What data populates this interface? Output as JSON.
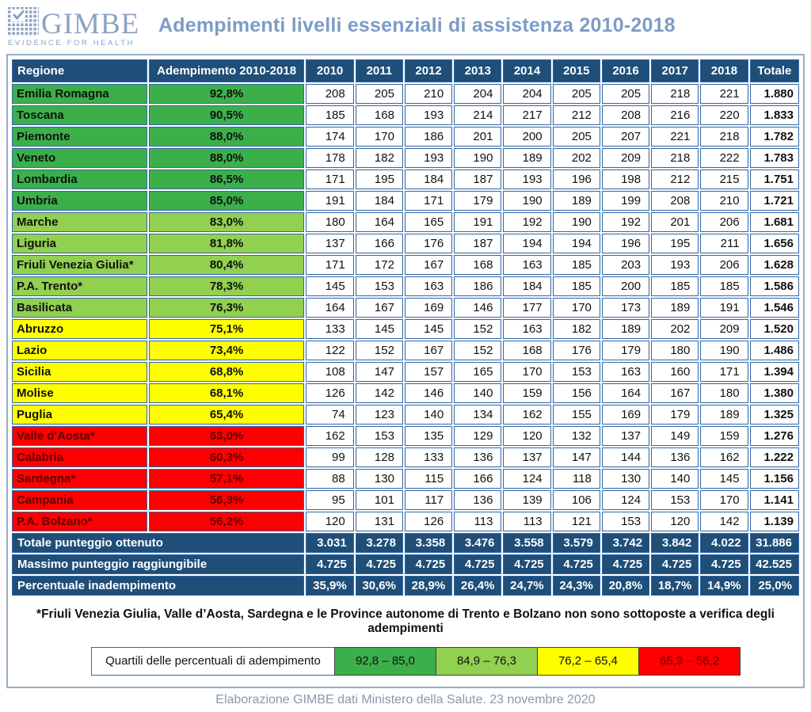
{
  "logo": {
    "brand": "GIMBE",
    "tagline": "EVIDENCE FOR HEALTH",
    "icon": "grid-check-icon",
    "color": "#8BA3C4"
  },
  "chart_data": {
    "type": "table",
    "title": "Adempimenti livelli essenziali di assistenza 2010-2018",
    "headers": [
      "Regione",
      "Adempimento 2010-2018",
      "2010",
      "2011",
      "2012",
      "2013",
      "2014",
      "2015",
      "2016",
      "2017",
      "2018",
      "Totale"
    ],
    "rows": [
      {
        "region": "Emilia Romagna",
        "adempimento": "92,8%",
        "tier": "green",
        "values": [
          208,
          205,
          210,
          204,
          204,
          205,
          205,
          218,
          221
        ],
        "total": "1.880"
      },
      {
        "region": "Toscana",
        "adempimento": "90,5%",
        "tier": "green",
        "values": [
          185,
          168,
          193,
          214,
          217,
          212,
          208,
          216,
          220
        ],
        "total": "1.833"
      },
      {
        "region": "Piemonte",
        "adempimento": "88,0%",
        "tier": "green",
        "values": [
          174,
          170,
          186,
          201,
          200,
          205,
          207,
          221,
          218
        ],
        "total": "1.782"
      },
      {
        "region": "Veneto",
        "adempimento": "88,0%",
        "tier": "green",
        "values": [
          178,
          182,
          193,
          190,
          189,
          202,
          209,
          218,
          222
        ],
        "total": "1.783"
      },
      {
        "region": "Lombardia",
        "adempimento": "86,5%",
        "tier": "green",
        "values": [
          171,
          195,
          184,
          187,
          193,
          196,
          198,
          212,
          215
        ],
        "total": "1.751"
      },
      {
        "region": "Umbria",
        "adempimento": "85,0%",
        "tier": "green",
        "values": [
          191,
          184,
          171,
          179,
          190,
          189,
          199,
          208,
          210
        ],
        "total": "1.721"
      },
      {
        "region": "Marche",
        "adempimento": "83,0%",
        "tier": "lightgreen",
        "values": [
          180,
          164,
          165,
          191,
          192,
          190,
          192,
          201,
          206
        ],
        "total": "1.681"
      },
      {
        "region": "Liguria",
        "adempimento": "81,8%",
        "tier": "lightgreen",
        "values": [
          137,
          166,
          176,
          187,
          194,
          194,
          196,
          195,
          211
        ],
        "total": "1.656"
      },
      {
        "region": "Friuli Venezia Giulia*",
        "adempimento": "80,4%",
        "tier": "lightgreen",
        "values": [
          171,
          172,
          167,
          168,
          163,
          185,
          203,
          193,
          206
        ],
        "total": "1.628"
      },
      {
        "region": "P.A. Trento*",
        "adempimento": "78,3%",
        "tier": "lightgreen",
        "values": [
          145,
          153,
          163,
          186,
          184,
          185,
          200,
          185,
          185
        ],
        "total": "1.586"
      },
      {
        "region": "Basilicata",
        "adempimento": "76,3%",
        "tier": "lightgreen",
        "values": [
          164,
          167,
          169,
          146,
          177,
          170,
          173,
          189,
          191
        ],
        "total": "1.546"
      },
      {
        "region": "Abruzzo",
        "adempimento": "75,1%",
        "tier": "yellow",
        "values": [
          133,
          145,
          145,
          152,
          163,
          182,
          189,
          202,
          209
        ],
        "total": "1.520"
      },
      {
        "region": "Lazio",
        "adempimento": "73,4%",
        "tier": "yellow",
        "values": [
          122,
          152,
          167,
          152,
          168,
          176,
          179,
          180,
          190
        ],
        "total": "1.486"
      },
      {
        "region": "Sicilia",
        "adempimento": "68,8%",
        "tier": "yellow",
        "values": [
          108,
          147,
          157,
          165,
          170,
          153,
          163,
          160,
          171
        ],
        "total": "1.394"
      },
      {
        "region": "Molise",
        "adempimento": "68,1%",
        "tier": "yellow",
        "values": [
          126,
          142,
          146,
          140,
          159,
          156,
          164,
          167,
          180
        ],
        "total": "1.380"
      },
      {
        "region": "Puglia",
        "adempimento": "65,4%",
        "tier": "yellow",
        "values": [
          74,
          123,
          140,
          134,
          162,
          155,
          169,
          179,
          189
        ],
        "total": "1.325"
      },
      {
        "region": "Valle d'Aosta*",
        "adempimento": "63,0%",
        "tier": "red",
        "values": [
          162,
          153,
          135,
          129,
          120,
          132,
          137,
          149,
          159
        ],
        "total": "1.276"
      },
      {
        "region": "Calabria",
        "adempimento": "60,3%",
        "tier": "red",
        "values": [
          99,
          128,
          133,
          136,
          137,
          147,
          144,
          136,
          162
        ],
        "total": "1.222"
      },
      {
        "region": "Sardegna*",
        "adempimento": "57,1%",
        "tier": "red",
        "values": [
          88,
          130,
          115,
          166,
          124,
          118,
          130,
          140,
          145
        ],
        "total": "1.156"
      },
      {
        "region": "Campania",
        "adempimento": "56,3%",
        "tier": "red",
        "values": [
          95,
          101,
          117,
          136,
          139,
          106,
          124,
          153,
          170
        ],
        "total": "1.141"
      },
      {
        "region": "P.A. Bolzano*",
        "adempimento": "56,2%",
        "tier": "red",
        "values": [
          120,
          131,
          126,
          113,
          113,
          121,
          153,
          120,
          142
        ],
        "total": "1.139"
      }
    ],
    "footer": [
      {
        "label": "Totale punteggio ottenuto",
        "values": [
          "3.031",
          "3.278",
          "3.358",
          "3.476",
          "3.558",
          "3.579",
          "3.742",
          "3.842",
          "4.022"
        ],
        "total": "31.886"
      },
      {
        "label": "Massimo punteggio raggiungibile",
        "values": [
          "4.725",
          "4.725",
          "4.725",
          "4.725",
          "4.725",
          "4.725",
          "4.725",
          "4.725",
          "4.725"
        ],
        "total": "42.525"
      },
      {
        "label": "Percentuale inadempimento",
        "values": [
          "35,9%",
          "30,6%",
          "28,9%",
          "26,4%",
          "24,7%",
          "24,3%",
          "20,8%",
          "18,7%",
          "14,9%"
        ],
        "total": "25,0%"
      }
    ],
    "note": "*Friuli Venezia Giulia, Valle d’Aosta, Sardegna e le Province autonome di Trento e Bolzano non sono sottoposte a verifica degli adempimenti",
    "legend": {
      "label": "Quartili delle percentuali di adempimento",
      "items": [
        {
          "range": "92,8 – 85,0",
          "tier": "green"
        },
        {
          "range": "84,9 – 76,3",
          "tier": "lightgreen"
        },
        {
          "range": "76,2 – 65,4",
          "tier": "yellow"
        },
        {
          "range": "65,3 – 56,2",
          "tier": "red"
        }
      ]
    }
  },
  "caption": "Elaborazione GIMBE dati Ministero della Salute. 23 novembre 2020",
  "colors": {
    "header_blue": "#1F4E79",
    "grid_blue": "#2F66A5",
    "green": "#3BB04A",
    "light_green": "#92D050",
    "yellow": "#FFFF00",
    "red": "#FF0000",
    "red_text": "#5C0000",
    "title_blue": "#7D9CC6",
    "frame_border": "#96AEC7",
    "caption_gray": "#8A99A9"
  }
}
